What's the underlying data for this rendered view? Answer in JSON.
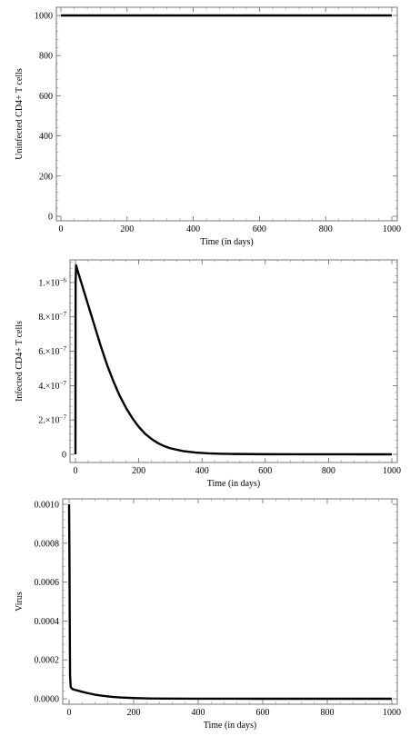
{
  "chart_data": [
    {
      "type": "line",
      "title": "",
      "xlabel": "Time (in days)",
      "ylabel": "Uninfected CD4+ T cells",
      "xlim": [
        0,
        1000
      ],
      "ylim": [
        0,
        1000
      ],
      "x_ticks": [
        0,
        200,
        400,
        600,
        800,
        1000
      ],
      "x_tick_labels": [
        "0",
        "200",
        "400",
        "600",
        "800",
        "1000"
      ],
      "y_ticks": [
        0,
        200,
        400,
        600,
        800,
        1000
      ],
      "y_tick_labels": [
        "0",
        "200",
        "400",
        "600",
        "800",
        "1000"
      ],
      "grid": false,
      "legend": "none",
      "line_color": "#000000",
      "series": [
        {
          "x": [
            0,
            100,
            200,
            300,
            400,
            500,
            600,
            700,
            800,
            900,
            1000
          ],
          "y": [
            1000,
            1000,
            1000,
            1000,
            1000,
            1000,
            1000,
            1000,
            1000,
            1000,
            1000
          ]
        }
      ]
    },
    {
      "type": "line",
      "title": "",
      "xlabel": "Time (in days)",
      "ylabel": "Infected CD4+ T cells",
      "xlim": [
        0,
        1000
      ],
      "ylim": [
        0,
        1.1e-06
      ],
      "x_ticks": [
        0,
        200,
        400,
        600,
        800,
        1000
      ],
      "x_tick_labels": [
        "0",
        "200",
        "400",
        "600",
        "800",
        "1000"
      ],
      "y_ticks": [
        0,
        2e-07,
        4e-07,
        6e-07,
        8e-07,
        1e-06
      ],
      "y_tick_labels": [
        {
          "mant": "0",
          "exp": ""
        },
        {
          "mant": "2.×10",
          "exp": "−7"
        },
        {
          "mant": "4.×10",
          "exp": "−7"
        },
        {
          "mant": "6.×10",
          "exp": "−7"
        },
        {
          "mant": "8.×10",
          "exp": "−7"
        },
        {
          "mant": "1.×10",
          "exp": "−6"
        }
      ],
      "grid": false,
      "legend": "none",
      "line_color": "#000000",
      "series": [
        {
          "x": [
            0,
            0.5,
            2,
            5,
            10,
            20,
            30,
            40,
            50,
            60,
            80,
            100,
            120,
            140,
            160,
            180,
            200,
            220,
            240,
            260,
            280,
            300,
            340,
            380,
            420,
            460,
            500,
            600,
            700,
            800,
            900,
            1000
          ],
          "y": [
            0,
            1e-06,
            1.1e-06,
            1.08e-06,
            1.05e-06,
            9.9e-07,
            9.3e-07,
            8.7e-07,
            8.1e-07,
            7.5e-07,
            6.3e-07,
            5.2e-07,
            4.25e-07,
            3.4e-07,
            2.7e-07,
            2.1e-07,
            1.6e-07,
            1.2e-07,
            9e-08,
            6.6e-08,
            4.8e-08,
            3.5e-08,
            1.9e-08,
            1e-08,
            5.5e-09,
            3.2e-09,
            2e-09,
            7e-10,
            3e-10,
            1e-10,
            5e-11,
            0
          ]
        }
      ]
    },
    {
      "type": "line",
      "title": "",
      "xlabel": "Time (in days)",
      "ylabel": "Virus",
      "xlim": [
        0,
        1000
      ],
      "ylim": [
        0,
        0.001
      ],
      "x_ticks": [
        0,
        200,
        400,
        600,
        800,
        1000
      ],
      "x_tick_labels": [
        "0",
        "200",
        "400",
        "600",
        "800",
        "1000"
      ],
      "y_ticks": [
        0,
        0.0002,
        0.0004,
        0.0006,
        0.0008,
        0.001
      ],
      "y_tick_labels": [
        "0.0000",
        "0.0002",
        "0.0004",
        "0.0006",
        "0.0008",
        "0.0010"
      ],
      "grid": false,
      "legend": "none",
      "line_color": "#000000",
      "series": [
        {
          "x": [
            0,
            1,
            2,
            3,
            5,
            10,
            20,
            40,
            60,
            80,
            100,
            130,
            160,
            200,
            250,
            300,
            400,
            500,
            600,
            800,
            1000
          ],
          "y": [
            0.001,
            0.00075,
            0.0004,
            0.00012,
            6e-05,
            5e-05,
            4.5e-05,
            3.6e-05,
            2.8e-05,
            2.1e-05,
            1.6e-05,
            1e-05,
            6.5e-06,
            3.5e-06,
            1.5e-06,
            7e-07,
            2e-07,
            1e-07,
            5e-08,
            1e-08,
            0
          ]
        }
      ]
    }
  ]
}
